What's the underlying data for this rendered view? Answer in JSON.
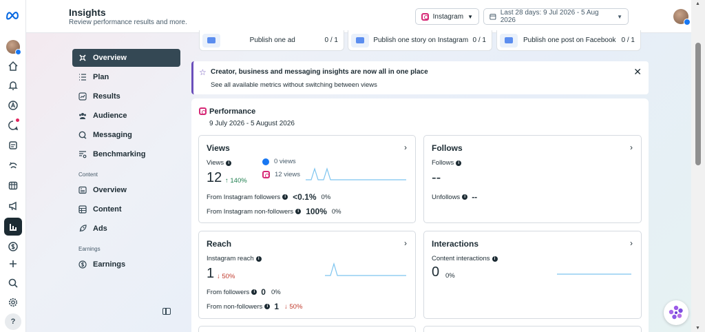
{
  "header": {
    "title": "Insights",
    "subtitle": "Review performance results and more.",
    "platform_select": "Instagram",
    "date_range": "Last 28 days: 9 Jul 2026 - 5 Aug 2026"
  },
  "nav": {
    "items": [
      {
        "label": "Overview",
        "icon": "overview-icon",
        "active": true
      },
      {
        "label": "Plan",
        "icon": "plan-icon"
      },
      {
        "label": "Results",
        "icon": "results-icon"
      },
      {
        "label": "Audience",
        "icon": "audience-icon"
      },
      {
        "label": "Messaging",
        "icon": "messaging-icon"
      },
      {
        "label": "Benchmarking",
        "icon": "benchmarking-icon"
      }
    ],
    "content_section": "Content",
    "content_items": [
      {
        "label": "Overview",
        "icon": "content-overview-icon"
      },
      {
        "label": "Content",
        "icon": "content-icon"
      },
      {
        "label": "Ads",
        "icon": "ads-icon"
      }
    ],
    "earnings_section": "Earnings",
    "earnings_items": [
      {
        "label": "Earnings",
        "icon": "earnings-icon"
      }
    ]
  },
  "tasks": [
    {
      "label": "Publish one ad",
      "count": "0 / 1"
    },
    {
      "label": "Publish one story on Instagram",
      "count": "0 / 1"
    },
    {
      "label": "Publish one post on Facebook",
      "count": "0 / 1"
    }
  ],
  "banner": {
    "title": "Creator, business and messaging insights are now all in one place",
    "text": "See all available metrics without switching between views"
  },
  "performance": {
    "title": "Performance",
    "date": "9 July 2026 - 5 August 2026",
    "views": {
      "title": "Views",
      "label": "Views",
      "value": "12",
      "change": "↑ 140%",
      "fb_views": "0 views",
      "ig_views": "12 views",
      "followers_label": "From Instagram followers",
      "followers_value": "<0.1%",
      "followers_change": "0%",
      "nonfollowers_label": "From Instagram non-followers",
      "nonfollowers_value": "100%",
      "nonfollowers_change": "0%"
    },
    "follows": {
      "title": "Follows",
      "label": "Follows",
      "value": "--",
      "unfollows_label": "Unfollows",
      "unfollows_value": "--"
    },
    "reach": {
      "title": "Reach",
      "label": "Instagram reach",
      "value": "1",
      "change": "↓ 50%",
      "followers_label": "From followers",
      "followers_value": "0",
      "followers_change": "0%",
      "nonfollowers_label": "From non-followers",
      "nonfollowers_value": "1",
      "nonfollowers_change": "↓ 50%"
    },
    "interactions": {
      "title": "Interactions",
      "label": "Content interactions",
      "value": "0",
      "change": "0%"
    }
  },
  "colors": {
    "accent": "#344854",
    "banner_accent": "#6b4fbb",
    "positive": "#1e7e4e",
    "negative": "#c0392b",
    "sparkline": "#7cc4ef"
  }
}
